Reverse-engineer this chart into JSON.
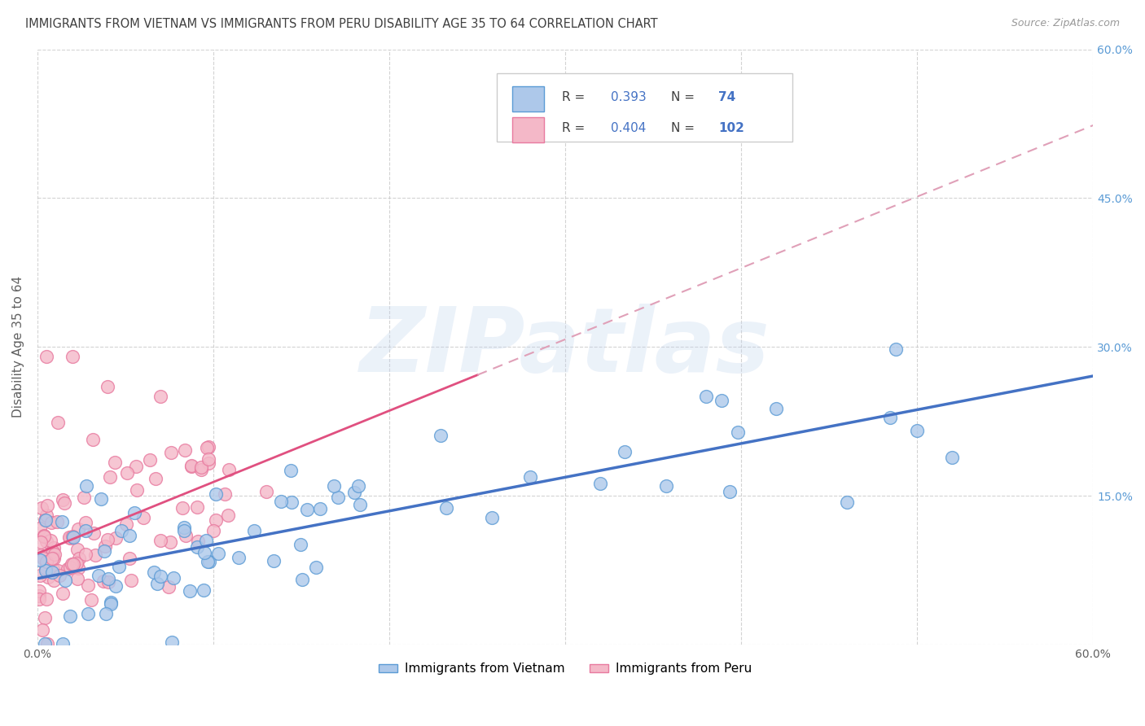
{
  "title": "IMMIGRANTS FROM VIETNAM VS IMMIGRANTS FROM PERU DISABILITY AGE 35 TO 64 CORRELATION CHART",
  "source": "Source: ZipAtlas.com",
  "ylabel": "Disability Age 35 to 64",
  "xlim": [
    0.0,
    0.6
  ],
  "ylim": [
    0.0,
    0.6
  ],
  "xticks": [
    0.0,
    0.1,
    0.2,
    0.3,
    0.4,
    0.5,
    0.6
  ],
  "yticks": [
    0.0,
    0.15,
    0.3,
    0.45,
    0.6
  ],
  "vietnam_color": "#adc8ea",
  "peru_color": "#f4b8c8",
  "vietnam_edge": "#5b9bd5",
  "peru_edge": "#e87a9f",
  "trend_vietnam_color": "#4472c4",
  "trend_peru_color": "#e05080",
  "trend_peru_dash_color": "#e0a0b8",
  "R_vietnam": 0.393,
  "N_vietnam": 74,
  "R_peru": 0.404,
  "N_peru": 102,
  "legend_label_vietnam": "Immigrants from Vietnam",
  "legend_label_peru": "Immigrants from Peru",
  "watermark": "ZIPatlas",
  "background_color": "#ffffff",
  "grid_color": "#c8c8c8",
  "title_color": "#404040",
  "axis_label_color": "#606060",
  "tick_color_right": "#5b9bd5",
  "legend_text_color": "#4472c4"
}
